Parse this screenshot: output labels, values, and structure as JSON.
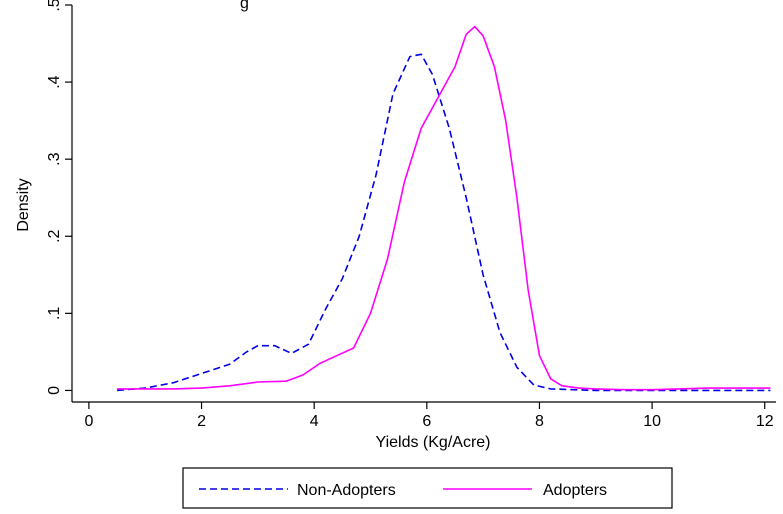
{
  "chart_data": {
    "type": "line",
    "title": "g",
    "xlabel": "Yields (Kg/Acre)",
    "ylabel": "Density",
    "xlim": [
      -0.3,
      12.2
    ],
    "ylim": [
      -0.015,
      0.5
    ],
    "xticks": [
      0,
      2,
      4,
      6,
      8,
      10,
      12
    ],
    "xtick_labels": [
      "0",
      "2",
      "4",
      "6",
      "8",
      "10",
      "12"
    ],
    "yticks": [
      0,
      0.1,
      0.2,
      0.3,
      0.4,
      0.5
    ],
    "ytick_labels": [
      "0",
      ".1",
      ".2",
      ".3",
      ".4",
      ".5"
    ],
    "grid": false,
    "legend_position": "bottom",
    "series": [
      {
        "name": "Non-Adopters",
        "color": "#0000e6",
        "dash": "dashed",
        "x": [
          0.5,
          1.0,
          1.5,
          2.0,
          2.5,
          2.8,
          3.0,
          3.3,
          3.6,
          3.9,
          4.2,
          4.5,
          4.8,
          5.1,
          5.4,
          5.7,
          5.9,
          6.1,
          6.4,
          6.7,
          7.0,
          7.3,
          7.6,
          7.9,
          8.2,
          8.6,
          9.0,
          10.0,
          11.0,
          12.1
        ],
        "y": [
          0,
          0.003,
          0.01,
          0.022,
          0.034,
          0.05,
          0.058,
          0.058,
          0.048,
          0.06,
          0.105,
          0.145,
          0.2,
          0.28,
          0.385,
          0.433,
          0.436,
          0.41,
          0.34,
          0.25,
          0.15,
          0.075,
          0.03,
          0.007,
          0.002,
          0.001,
          0,
          0,
          0,
          0
        ]
      },
      {
        "name": "Adopters",
        "color": "#ff00ff",
        "dash": "solid",
        "x": [
          0.5,
          1.0,
          1.5,
          2.0,
          2.5,
          3.0,
          3.5,
          3.8,
          4.1,
          4.4,
          4.7,
          5.0,
          5.3,
          5.6,
          5.9,
          6.2,
          6.5,
          6.7,
          6.85,
          7.0,
          7.2,
          7.4,
          7.6,
          7.8,
          8.0,
          8.2,
          8.4,
          8.7,
          9.0,
          9.5,
          10.0,
          11.0,
          12.1
        ],
        "y": [
          0.002,
          0.002,
          0.002,
          0.003,
          0.006,
          0.011,
          0.012,
          0.02,
          0.035,
          0.045,
          0.055,
          0.1,
          0.17,
          0.27,
          0.34,
          0.38,
          0.42,
          0.462,
          0.472,
          0.46,
          0.42,
          0.35,
          0.25,
          0.13,
          0.045,
          0.015,
          0.006,
          0.003,
          0.002,
          0.001,
          0.001,
          0.003,
          0.003
        ]
      }
    ]
  }
}
